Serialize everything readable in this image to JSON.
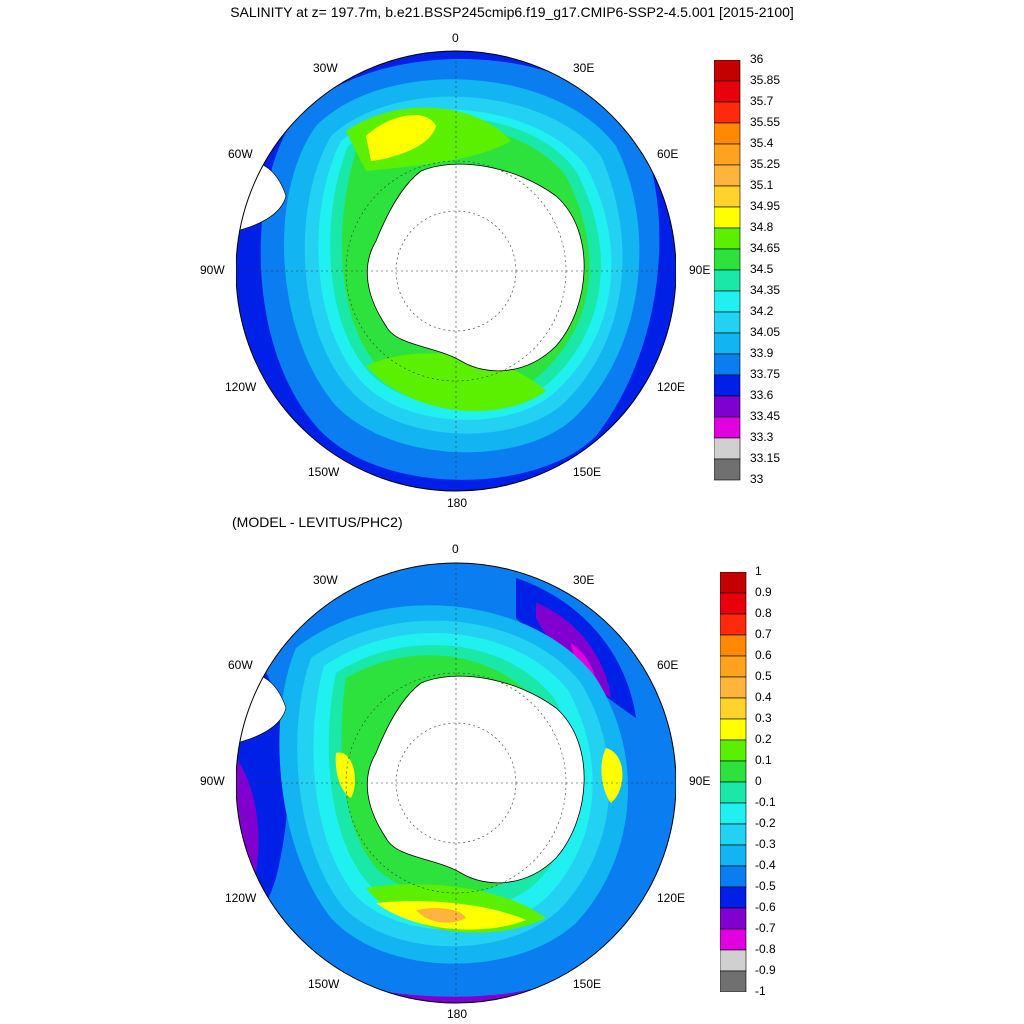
{
  "title": "SALINITY at z= 197.7m, b.e21.BSSP245cmip6.f19_g17.CMIP6-SSP2-4.5.001 [2015-2100]",
  "subtitle": "(MODEL - LEVITUS/PHC2)",
  "lon_labels": [
    "0",
    "30E",
    "60E",
    "90E",
    "120E",
    "150E",
    "180",
    "150W",
    "120W",
    "90W",
    "60W",
    "30W"
  ],
  "top_colorbar": {
    "labels": [
      "36",
      "35.85",
      "35.7",
      "35.55",
      "35.4",
      "35.25",
      "35.1",
      "34.95",
      "34.8",
      "34.65",
      "34.5",
      "34.35",
      "34.2",
      "34.05",
      "33.9",
      "33.75",
      "33.6",
      "33.45",
      "33.3",
      "33.15",
      "33"
    ],
    "colors": [
      "#c40000",
      "#e8000b",
      "#ff2a0b",
      "#ff8a00",
      "#ffa21e",
      "#ffb53c",
      "#ffd329",
      "#ffff00",
      "#5af000",
      "#2ee23e",
      "#19e8a8",
      "#20f0f0",
      "#23d2f2",
      "#12b4f2",
      "#0a7ef0",
      "#0020e8",
      "#8000d0",
      "#e000e0",
      "#d0d0d0",
      "#707070"
    ]
  },
  "bottom_colorbar": {
    "labels": [
      "1",
      "0.9",
      "0.8",
      "0.7",
      "0.6",
      "0.5",
      "0.4",
      "0.3",
      "0.2",
      "0.1",
      "0",
      "-0.1",
      "-0.2",
      "-0.3",
      "-0.4",
      "-0.5",
      "-0.6",
      "-0.7",
      "-0.8",
      "-0.9",
      "-1"
    ],
    "colors": [
      "#c40000",
      "#e8000b",
      "#ff2a0b",
      "#ff8a00",
      "#ffa21e",
      "#ffb53c",
      "#ffd329",
      "#ffff00",
      "#5af000",
      "#2ee23e",
      "#19e8a8",
      "#20f0f0",
      "#23d2f2",
      "#12b4f2",
      "#0a7ef0",
      "#0020e8",
      "#8000d0",
      "#e000e0",
      "#d0d0d0",
      "#707070"
    ]
  },
  "top_map": {
    "land_color": "#ffffff",
    "ocean_fill_colors": [
      "#0020e8",
      "#0a7ef0",
      "#12b4f2",
      "#23d2f2",
      "#20f0f0",
      "#19e8a8",
      "#2ee23e",
      "#5af000",
      "#ffff00"
    ]
  },
  "bottom_map": {
    "land_color": "#ffffff",
    "ocean_fill_colors": [
      "#8000d0",
      "#0020e8",
      "#0a7ef0",
      "#12b4f2",
      "#23d2f2",
      "#20f0f0",
      "#19e8a8",
      "#2ee23e",
      "#5af000",
      "#ffff00",
      "#ffd329",
      "#ffb53c"
    ]
  }
}
